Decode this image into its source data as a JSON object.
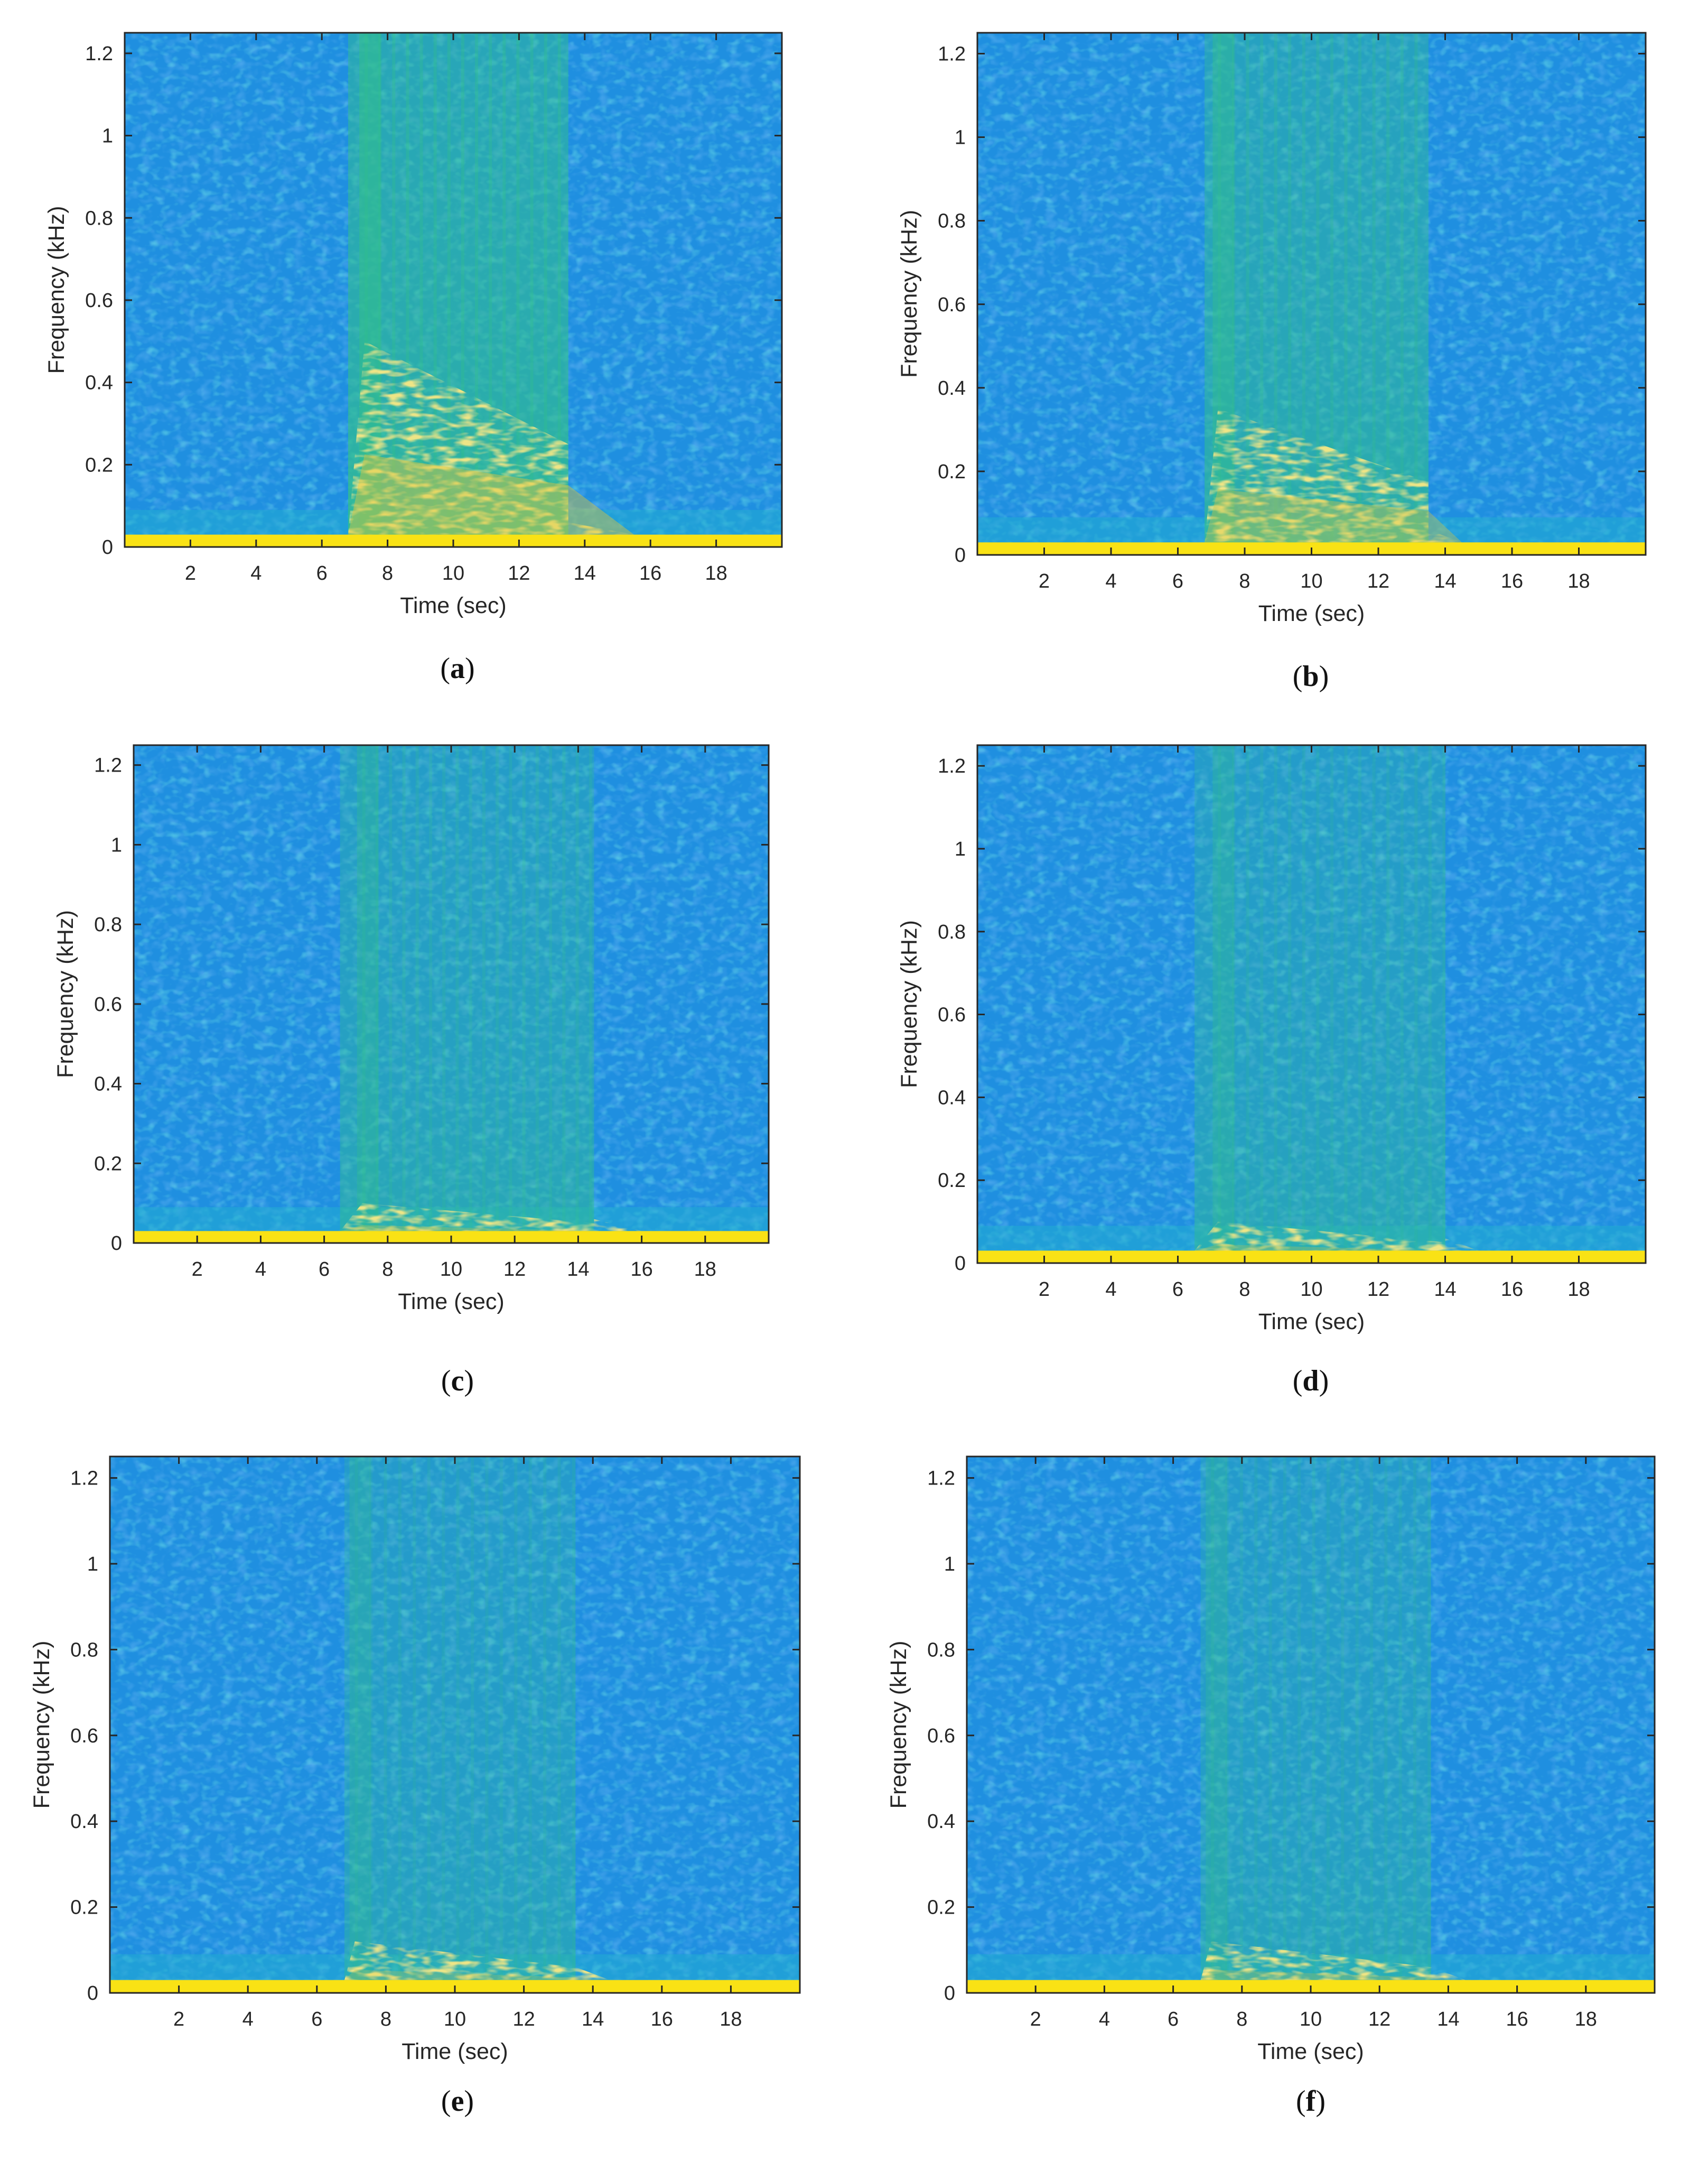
{
  "chart_data": [
    {
      "type": "heatmap",
      "caption": "a",
      "xlabel": "Time (sec)",
      "ylabel": "Frequency (kHz)",
      "xlim": [
        0,
        20
      ],
      "ylim": [
        0,
        1.25
      ],
      "xticks": [
        "2",
        "4",
        "6",
        "8",
        "10",
        "12",
        "14",
        "16",
        "18"
      ],
      "yticks": [
        "0",
        "0.2",
        "0.4",
        "0.6",
        "0.8",
        "1",
        "1.2"
      ],
      "grid": false,
      "colormap": "parula",
      "event": {
        "start": 6.8,
        "end": 13.5,
        "peak_start": 7.3,
        "band_top": 0.5,
        "fade_end": 15.5,
        "line_width": 0.03,
        "intensity": 1.0
      }
    },
    {
      "type": "heatmap",
      "caption": "b",
      "xlabel": "Time (sec)",
      "ylabel": "Frequency (kHz)",
      "xlim": [
        0,
        20
      ],
      "ylim": [
        0,
        1.25
      ],
      "xticks": [
        "2",
        "4",
        "6",
        "8",
        "10",
        "12",
        "14",
        "16",
        "18"
      ],
      "yticks": [
        "0",
        "0.2",
        "0.4",
        "0.6",
        "0.8",
        "1",
        "1.2"
      ],
      "grid": false,
      "colormap": "parula",
      "event": {
        "start": 6.8,
        "end": 13.5,
        "peak_start": 7.2,
        "band_top": 0.35,
        "fade_end": 14.5,
        "line_width": 0.03,
        "intensity": 0.8
      }
    },
    {
      "type": "heatmap",
      "caption": "c",
      "xlabel": "Time (sec)",
      "ylabel": "Frequency (kHz)",
      "xlim": [
        0,
        20
      ],
      "ylim": [
        0,
        1.25
      ],
      "xticks": [
        "2",
        "4",
        "6",
        "8",
        "10",
        "12",
        "14",
        "16",
        "18"
      ],
      "yticks": [
        "0",
        "0.2",
        "0.4",
        "0.6",
        "0.8",
        "1",
        "1.2"
      ],
      "grid": false,
      "colormap": "parula",
      "event": {
        "start": 6.5,
        "end": 14.5,
        "peak_start": 7.2,
        "band_top": 0.1,
        "fade_end": 16.0,
        "line_width": 0.03,
        "intensity": 0.6
      }
    },
    {
      "type": "heatmap",
      "caption": "d",
      "xlabel": "Time (sec)",
      "ylabel": "Frequency (kHz)",
      "xlim": [
        0,
        20
      ],
      "ylim": [
        0,
        1.25
      ],
      "xticks": [
        "2",
        "4",
        "6",
        "8",
        "10",
        "12",
        "14",
        "16",
        "18"
      ],
      "yticks": [
        "0",
        "0.2",
        "0.4",
        "0.6",
        "0.8",
        "1",
        "1.2"
      ],
      "grid": false,
      "colormap": "parula",
      "event": {
        "start": 6.5,
        "end": 14.0,
        "peak_start": 7.2,
        "band_top": 0.1,
        "fade_end": 15.0,
        "line_width": 0.03,
        "intensity": 0.55
      }
    },
    {
      "type": "heatmap",
      "caption": "e",
      "xlabel": "Time (sec)",
      "ylabel": "Frequency (kHz)",
      "xlim": [
        0,
        20
      ],
      "ylim": [
        0,
        1.25
      ],
      "xticks": [
        "2",
        "4",
        "6",
        "8",
        "10",
        "12",
        "14",
        "16",
        "18"
      ],
      "yticks": [
        "0",
        "0.2",
        "0.4",
        "0.6",
        "0.8",
        "1",
        "1.2"
      ],
      "grid": false,
      "colormap": "parula",
      "event": {
        "start": 6.8,
        "end": 13.5,
        "peak_start": 7.1,
        "band_top": 0.12,
        "fade_end": 14.5,
        "line_width": 0.03,
        "intensity": 0.5
      }
    },
    {
      "type": "heatmap",
      "caption": "f",
      "xlabel": "Time (sec)",
      "ylabel": "Frequency (kHz)",
      "xlim": [
        0,
        20
      ],
      "ylim": [
        0,
        1.25
      ],
      "xticks": [
        "2",
        "4",
        "6",
        "8",
        "10",
        "12",
        "14",
        "16",
        "18"
      ],
      "yticks": [
        "0",
        "0.2",
        "0.4",
        "0.6",
        "0.8",
        "1",
        "1.2"
      ],
      "grid": false,
      "colormap": "parula",
      "event": {
        "start": 6.8,
        "end": 13.5,
        "peak_start": 7.1,
        "band_top": 0.12,
        "fade_end": 14.5,
        "line_width": 0.03,
        "intensity": 0.5
      }
    }
  ],
  "colors": {
    "background_blue": "#1f8fe0",
    "noise_dark": "#1565d8",
    "noise_light": "#21b0cf",
    "mid_green": "#32c08a",
    "strong_yellow": "#dcc63c",
    "line_yellow": "#f9e215",
    "axis": "#262626"
  }
}
